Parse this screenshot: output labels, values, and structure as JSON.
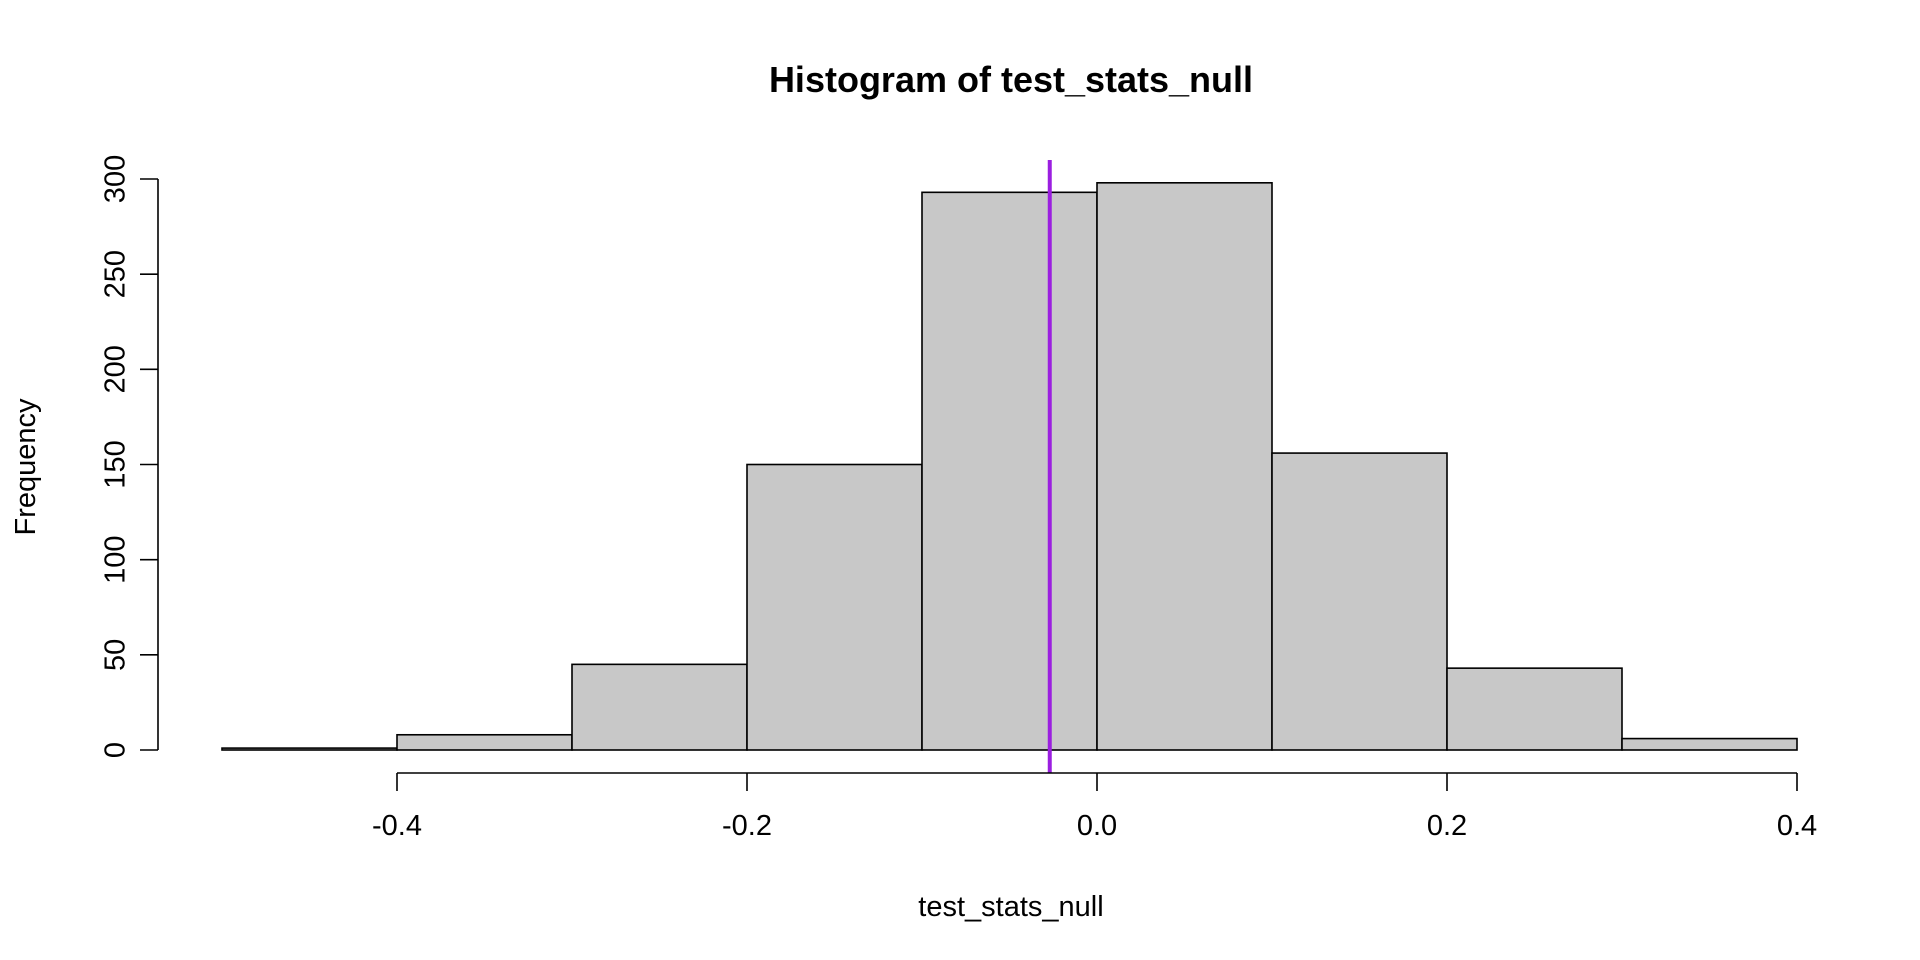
{
  "chart_data": {
    "type": "bar",
    "title": "Histogram of test_stats_null",
    "xlabel": "test_stats_null",
    "ylabel": "Frequency",
    "bins": [
      {
        "start": -0.5,
        "end": -0.4,
        "count": 1
      },
      {
        "start": -0.4,
        "end": -0.3,
        "count": 8
      },
      {
        "start": -0.3,
        "end": -0.2,
        "count": 45
      },
      {
        "start": -0.2,
        "end": -0.1,
        "count": 150
      },
      {
        "start": -0.1,
        "end": 0.0,
        "count": 293
      },
      {
        "start": 0.0,
        "end": 0.1,
        "count": 298
      },
      {
        "start": 0.1,
        "end": 0.2,
        "count": 156
      },
      {
        "start": 0.2,
        "end": 0.3,
        "count": 43
      },
      {
        "start": 0.3,
        "end": 0.4,
        "count": 6
      }
    ],
    "xlim": [
      -0.5,
      0.4
    ],
    "ylim": [
      0,
      300
    ],
    "xticks": [
      -0.4,
      -0.2,
      0.0,
      0.2,
      0.4
    ],
    "xtick_labels": [
      "-0.4",
      "-0.2",
      "0.0",
      "0.2",
      "0.4"
    ],
    "yticks": [
      0,
      50,
      100,
      150,
      200,
      250,
      300
    ],
    "ytick_labels": [
      "0",
      "50",
      "100",
      "150",
      "200",
      "250",
      "300"
    ],
    "reference_line": {
      "x": -0.027,
      "color": "#9b1fe0"
    },
    "bar_color": "#c8c8c8",
    "grid": false
  }
}
